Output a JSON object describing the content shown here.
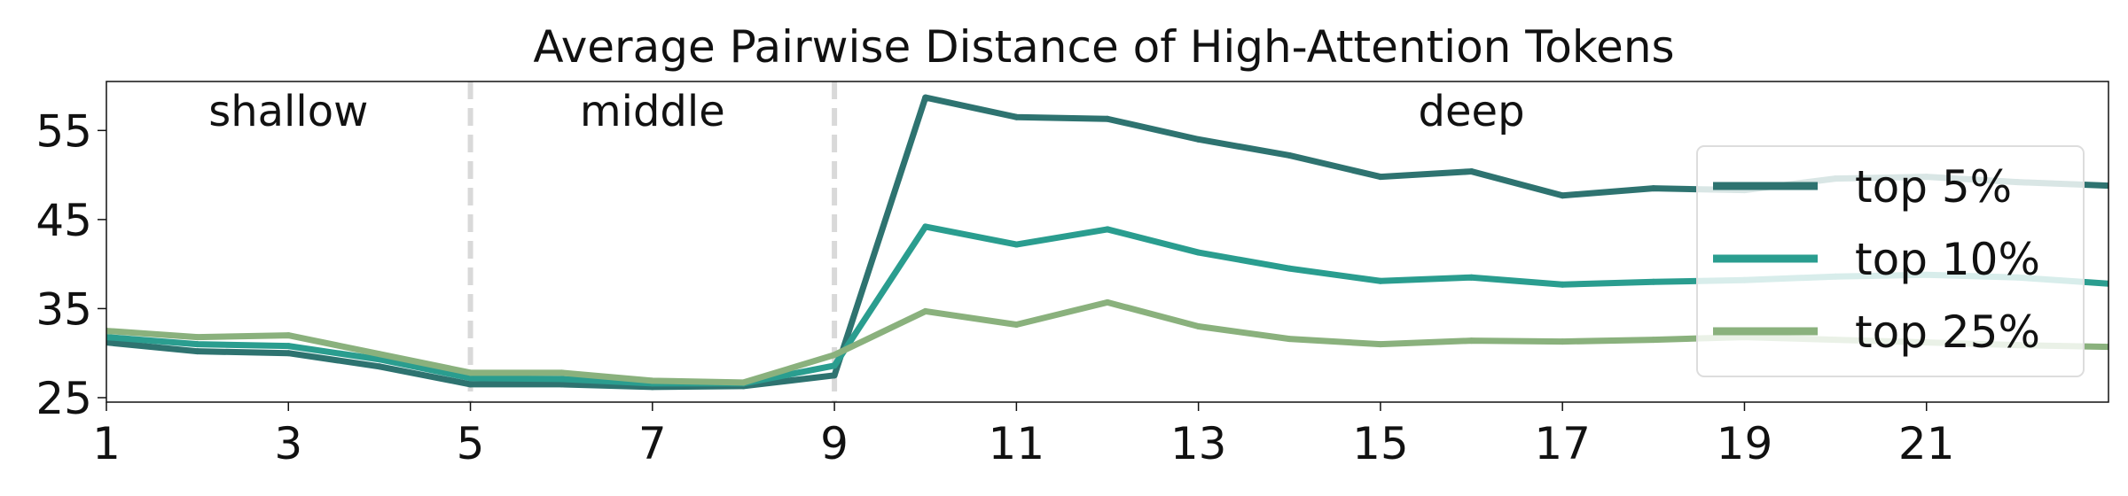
{
  "chart_data": {
    "type": "line",
    "title": "Average Pairwise Distance of High-Attention Tokens",
    "xlabel": "",
    "ylabel": "",
    "xlim": [
      1,
      23
    ],
    "ylim": [
      24.5,
      60.5
    ],
    "xticks": [
      1,
      3,
      5,
      7,
      9,
      11,
      13,
      15,
      17,
      19,
      21
    ],
    "yticks": [
      25,
      35,
      45,
      55
    ],
    "grid": false,
    "legend_position": "right",
    "region_dividers": [
      5,
      9
    ],
    "regions": [
      {
        "label": "shallow",
        "x_center": 3
      },
      {
        "label": "middle",
        "x_center": 7
      },
      {
        "label": "deep",
        "x_center": 16
      }
    ],
    "x": [
      1,
      2,
      3,
      4,
      5,
      6,
      7,
      8,
      9,
      10,
      11,
      12,
      13,
      14,
      15,
      16,
      17,
      18,
      19,
      20,
      21,
      22,
      23
    ],
    "series": [
      {
        "name": "top 5%",
        "color": "#2e7370",
        "values": [
          31.2,
          30.2,
          30.0,
          28.5,
          26.5,
          26.5,
          26.2,
          26.3,
          27.5,
          58.7,
          56.5,
          56.3,
          54.0,
          52.2,
          49.8,
          50.4,
          47.7,
          48.5,
          48.3,
          49.6,
          49.8,
          49.2,
          48.8
        ]
      },
      {
        "name": "top 10%",
        "color": "#2a9d8f",
        "values": [
          31.8,
          31.0,
          30.8,
          29.3,
          27.2,
          27.1,
          26.6,
          26.6,
          28.6,
          44.2,
          42.2,
          43.9,
          41.3,
          39.5,
          38.1,
          38.5,
          37.7,
          38.0,
          38.2,
          38.6,
          38.8,
          38.5,
          37.8
        ]
      },
      {
        "name": "top 25%",
        "color": "#8ab17d",
        "values": [
          32.5,
          31.8,
          32.0,
          29.9,
          27.8,
          27.8,
          26.9,
          26.7,
          29.8,
          34.7,
          33.2,
          35.7,
          33.0,
          31.6,
          31.0,
          31.4,
          31.3,
          31.5,
          31.8,
          31.5,
          31.2,
          30.9,
          30.7
        ]
      }
    ]
  },
  "colors": {
    "axis": "#111111",
    "divider": "#d9d9d9",
    "legend_border": "#dddddd",
    "legend_background": "#ffffff"
  }
}
